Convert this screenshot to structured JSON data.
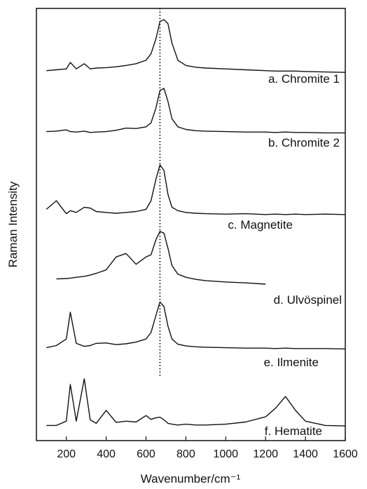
{
  "chart_data": {
    "type": "line",
    "xlabel": "Wavenumber/cm⁻¹",
    "ylabel": "Raman Intensity",
    "xlim": [
      50,
      1600
    ],
    "xticks": [
      200,
      400,
      600,
      800,
      1000,
      1200,
      1400,
      1600
    ],
    "ylim": [
      0,
      100
    ],
    "reference_x": 670,
    "series": [
      {
        "name": "a. Chromite 1",
        "color": "#111111",
        "x": [
          100,
          150,
          200,
          220,
          250,
          290,
          320,
          350,
          400,
          450,
          500,
          550,
          600,
          625,
          650,
          670,
          690,
          710,
          730,
          760,
          800,
          850,
          900,
          1000,
          1100,
          1200,
          1250,
          1300,
          1350,
          1400,
          1500,
          1600
        ],
        "values": [
          85.6,
          85.8,
          86.0,
          87.5,
          86.0,
          87.2,
          86.0,
          86.2,
          86.3,
          86.5,
          86.8,
          87.2,
          88.0,
          89.5,
          93.0,
          97.0,
          97.4,
          96.5,
          92.0,
          88.0,
          86.8,
          86.4,
          86.2,
          86.0,
          85.8,
          85.6,
          85.5,
          85.5,
          85.5,
          85.4,
          85.3,
          85.2
        ]
      },
      {
        "name": "b. Chromite 2",
        "color": "#111111",
        "x": [
          100,
          150,
          200,
          220,
          250,
          290,
          320,
          350,
          400,
          450,
          500,
          550,
          600,
          625,
          650,
          670,
          690,
          710,
          730,
          760,
          800,
          850,
          900,
          1000,
          1100,
          1200,
          1250,
          1300,
          1350,
          1400,
          1500,
          1600
        ],
        "values": [
          71.5,
          71.6,
          71.9,
          71.5,
          71.4,
          71.6,
          71.3,
          71.4,
          71.5,
          71.8,
          72.3,
          72.2,
          72.6,
          73.5,
          77.0,
          81.0,
          81.5,
          78.5,
          74.5,
          72.6,
          72.0,
          71.7,
          71.6,
          71.5,
          71.4,
          71.4,
          71.3,
          71.4,
          71.3,
          71.3,
          71.2,
          71.2
        ]
      },
      {
        "name": "c. Magnetite",
        "color": "#111111",
        "x": [
          100,
          150,
          200,
          220,
          250,
          290,
          320,
          350,
          400,
          450,
          500,
          550,
          600,
          625,
          650,
          670,
          690,
          710,
          730,
          760,
          800,
          850,
          900,
          1000,
          1100,
          1200,
          1250,
          1300,
          1350,
          1400,
          1500,
          1600
        ],
        "values": [
          53.5,
          55.5,
          52.5,
          53.2,
          52.8,
          54.0,
          53.8,
          53.0,
          52.8,
          52.6,
          52.8,
          53.0,
          53.5,
          55.5,
          60.5,
          63.8,
          62.5,
          57.0,
          54.0,
          53.2,
          52.8,
          52.6,
          52.5,
          52.4,
          52.5,
          52.3,
          52.4,
          52.3,
          52.4,
          52.3,
          52.4,
          52.3
        ]
      },
      {
        "name": "d. Ulvöspinel",
        "color": "#111111",
        "x": [
          150,
          200,
          220,
          250,
          290,
          320,
          350,
          400,
          450,
          500,
          550,
          600,
          625,
          650,
          670,
          690,
          710,
          730,
          760,
          800,
          850,
          900,
          1000,
          1100,
          1200
        ],
        "values": [
          37.4,
          37.5,
          37.6,
          37.8,
          38.0,
          38.3,
          38.7,
          39.5,
          42.5,
          43.3,
          40.8,
          42.5,
          43.0,
          46.5,
          48.4,
          48.0,
          44.5,
          40.5,
          38.5,
          37.8,
          37.3,
          37.0,
          36.7,
          36.5,
          36.2
        ]
      },
      {
        "name": "e. Ilmenite",
        "color": "#111111",
        "x": [
          100,
          150,
          200,
          220,
          250,
          290,
          320,
          350,
          400,
          450,
          500,
          550,
          600,
          625,
          650,
          670,
          690,
          710,
          730,
          760,
          800,
          850,
          900,
          1000,
          1100,
          1200,
          1250,
          1300,
          1350,
          1400,
          1500,
          1600
        ],
        "values": [
          21.5,
          22.0,
          23.5,
          29.7,
          22.5,
          21.8,
          22.0,
          22.5,
          22.6,
          22.2,
          22.4,
          22.8,
          23.5,
          25.0,
          29.0,
          32.1,
          31.0,
          26.5,
          23.5,
          22.3,
          21.9,
          21.7,
          21.6,
          21.5,
          21.4,
          21.4,
          21.3,
          21.4,
          21.3,
          21.3,
          21.3,
          21.2
        ]
      },
      {
        "name": "f. Hematite",
        "color": "#111111",
        "x": [
          100,
          150,
          200,
          220,
          250,
          290,
          320,
          350,
          400,
          450,
          500,
          550,
          600,
          625,
          650,
          670,
          690,
          710,
          730,
          760,
          800,
          850,
          900,
          1000,
          1100,
          1200,
          1250,
          1300,
          1350,
          1400,
          1500,
          1600
        ],
        "values": [
          3.5,
          3.5,
          4.5,
          13.0,
          4.5,
          14.3,
          4.8,
          4.0,
          7.0,
          4.2,
          4.5,
          4.3,
          5.8,
          4.9,
          5.3,
          5.4,
          4.8,
          4.0,
          3.8,
          3.6,
          3.8,
          3.6,
          3.6,
          3.8,
          4.3,
          5.5,
          7.5,
          10.2,
          7.0,
          4.5,
          3.5,
          3.4
        ]
      }
    ]
  }
}
